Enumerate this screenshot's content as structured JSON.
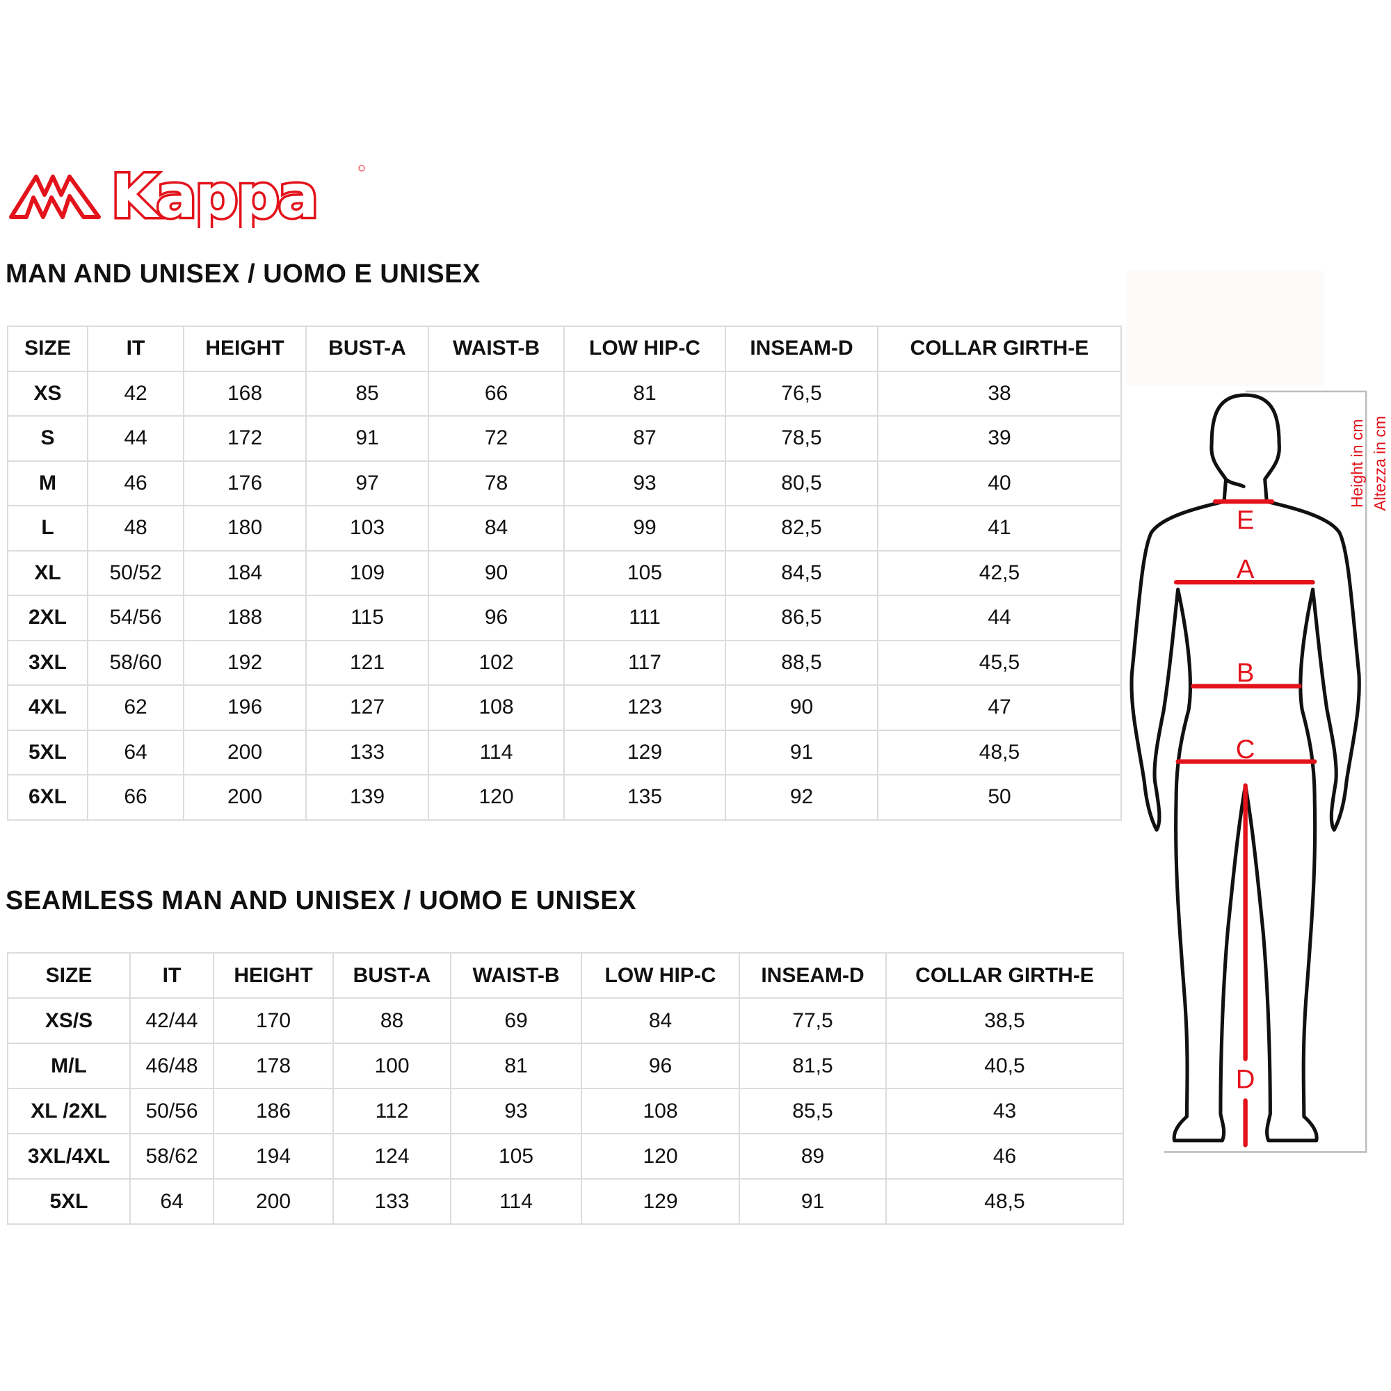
{
  "brand": {
    "logo_text": "Kappa",
    "color": "#e3121b"
  },
  "table1": {
    "title": "MAN AND UNISEX / UOMO E UNISEX",
    "headers": [
      "SIZE",
      "IT",
      "HEIGHT",
      "BUST-A",
      "WAIST-B",
      "LOW HIP-C",
      "INSEAM-D",
      "COLLAR GIRTH-E"
    ],
    "rows": [
      [
        "XS",
        "42",
        "168",
        "85",
        "66",
        "81",
        "76,5",
        "38"
      ],
      [
        "S",
        "44",
        "172",
        "91",
        "72",
        "87",
        "78,5",
        "39"
      ],
      [
        "M",
        "46",
        "176",
        "97",
        "78",
        "93",
        "80,5",
        "40"
      ],
      [
        "L",
        "48",
        "180",
        "103",
        "84",
        "99",
        "82,5",
        "41"
      ],
      [
        "XL",
        "50/52",
        "184",
        "109",
        "90",
        "105",
        "84,5",
        "42,5"
      ],
      [
        "2XL",
        "54/56",
        "188",
        "115",
        "96",
        "111",
        "86,5",
        "44"
      ],
      [
        "3XL",
        "58/60",
        "192",
        "121",
        "102",
        "117",
        "88,5",
        "45,5"
      ],
      [
        "4XL",
        "62",
        "196",
        "127",
        "108",
        "123",
        "90",
        "47"
      ],
      [
        "5XL",
        "64",
        "200",
        "133",
        "114",
        "129",
        "91",
        "48,5"
      ],
      [
        "6XL",
        "66",
        "200",
        "139",
        "120",
        "135",
        "92",
        "50"
      ]
    ]
  },
  "table2": {
    "title": "SEAMLESS MAN AND UNISEX / UOMO E UNISEX",
    "headers": [
      "SIZE",
      "IT",
      "HEIGHT",
      "BUST-A",
      "WAIST-B",
      "LOW HIP-C",
      "INSEAM-D",
      "COLLAR GIRTH-E"
    ],
    "rows": [
      [
        "XS/S",
        "42/44",
        "170",
        "88",
        "69",
        "84",
        "77,5",
        "38,5"
      ],
      [
        "M/L",
        "46/48",
        "178",
        "100",
        "81",
        "96",
        "81,5",
        "40,5"
      ],
      [
        "XL /2XL",
        "50/56",
        "186",
        "112",
        "93",
        "108",
        "85,5",
        "43"
      ],
      [
        "3XL/4XL",
        "58/62",
        "194",
        "124",
        "105",
        "120",
        "89",
        "46"
      ],
      [
        "5XL",
        "64",
        "200",
        "133",
        "114",
        "129",
        "91",
        "48,5"
      ]
    ]
  },
  "figure": {
    "labels": {
      "e": "E",
      "a": "A",
      "b": "B",
      "c": "C",
      "d": "D"
    },
    "height_en": "Height in cm",
    "height_it": "Altezza in cm",
    "measure_color": "#e3121b"
  }
}
